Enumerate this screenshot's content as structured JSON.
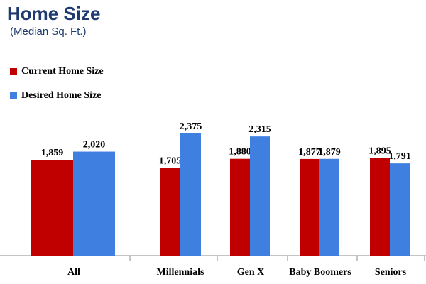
{
  "chart_data": {
    "type": "bar",
    "title": "Home Size",
    "subtitle": "(Median Sq. Ft.)",
    "categories": [
      "All",
      "Millennials",
      "Gen X",
      "Baby Boomers",
      "Seniors"
    ],
    "series": [
      {
        "name": "Current Home Size",
        "color": "#c00000",
        "values": [
          1859,
          1705,
          1880,
          1877,
          1895
        ],
        "labels": [
          "1,859",
          "1,705",
          "1,880",
          "1,877",
          "1,895"
        ]
      },
      {
        "name": "Desired Home Size",
        "color": "#3f7fe0",
        "values": [
          2020,
          2375,
          2315,
          1879,
          1791
        ],
        "labels": [
          "2,020",
          "2,375",
          "2,315",
          "1,879",
          "1,791"
        ]
      }
    ],
    "legend_position": "top-left",
    "grid": false
  }
}
